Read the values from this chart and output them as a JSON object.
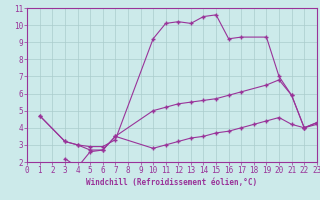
{
  "xlabel": "Windchill (Refroidissement éolien,°C)",
  "bg_color": "#cceaea",
  "grid_color": "#aacccc",
  "line_color": "#993399",
  "xmin": 0,
  "xmax": 23,
  "ymin": 2,
  "ymax": 11,
  "curve1_x": [
    1,
    3,
    4,
    5,
    6,
    7,
    10,
    11,
    12,
    13,
    14,
    15,
    16,
    17,
    19,
    20,
    21,
    22,
    23
  ],
  "curve1_y": [
    4.7,
    3.2,
    3.0,
    2.9,
    2.9,
    3.3,
    9.2,
    10.1,
    10.2,
    10.1,
    10.5,
    10.6,
    9.2,
    9.3,
    9.3,
    7.0,
    5.9,
    4.0,
    4.3
  ],
  "curve2_x": [
    1,
    3,
    4,
    5,
    6,
    7,
    10,
    11,
    12,
    13,
    14,
    15,
    16,
    17,
    19,
    20,
    21,
    22,
    23
  ],
  "curve2_y": [
    4.7,
    3.2,
    3.0,
    2.7,
    2.7,
    3.5,
    5.0,
    5.2,
    5.4,
    5.5,
    5.6,
    5.7,
    5.9,
    6.1,
    6.5,
    6.8,
    5.9,
    4.0,
    4.3
  ],
  "curve3_x": [
    3,
    4,
    5,
    6,
    7,
    10,
    11,
    12,
    13,
    14,
    15,
    16,
    17,
    18,
    19,
    20,
    21,
    22,
    23
  ],
  "curve3_y": [
    2.2,
    1.7,
    2.6,
    2.7,
    3.5,
    2.8,
    3.0,
    3.2,
    3.4,
    3.5,
    3.7,
    3.8,
    4.0,
    4.2,
    4.4,
    4.6,
    4.2,
    4.0,
    4.2
  ],
  "xticks": [
    0,
    1,
    2,
    3,
    4,
    5,
    6,
    7,
    8,
    9,
    10,
    11,
    12,
    13,
    14,
    15,
    16,
    17,
    18,
    19,
    20,
    21,
    22,
    23
  ],
  "yticks": [
    2,
    3,
    4,
    5,
    6,
    7,
    8,
    9,
    10,
    11
  ],
  "tick_fontsize": 5.5,
  "label_fontsize": 5.5
}
